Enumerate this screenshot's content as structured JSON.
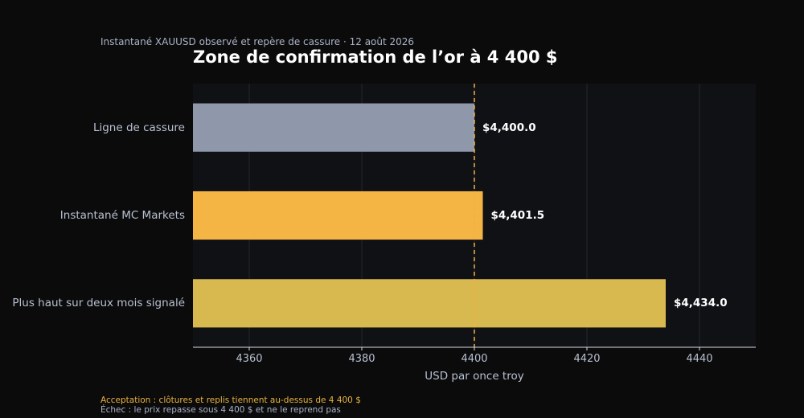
{
  "colors": {
    "background": "#0b0b0c",
    "plot_background": "#101115",
    "grid": "#26282e",
    "axis": "#d7dbe3",
    "reference_line": "#f2b13e",
    "acceptance_text": "#e8b23e",
    "failure_text": "#aab3c5"
  },
  "chart_data": {
    "type": "bar",
    "orientation": "horizontal",
    "subtitle": "Instantané XAUUSD observé et repère de cassure · 12 août 2026",
    "title": "Zone de confirmation de l’or à 4 400 $",
    "xlabel": "USD par once troy",
    "ylabel": "",
    "xlim": [
      4350,
      4450
    ],
    "xticks": [
      4360,
      4380,
      4400,
      4420,
      4440
    ],
    "grid": true,
    "reference_line": 4400,
    "categories": [
      "Ligne de cassure",
      "Instantané MC Markets",
      "Plus haut sur deux mois signalé"
    ],
    "values": [
      4400.0,
      4401.5,
      4434.0
    ],
    "value_labels": [
      "$4,400.0",
      "$4,401.5",
      "$4,434.0"
    ],
    "bar_colors": [
      "#8f98ab",
      "#f4b545",
      "#d8b94f"
    ]
  },
  "notes": {
    "acceptance": "Acceptation : clôtures et replis tiennent au-dessus de 4 400 $",
    "failure": "Échec : le prix repasse sous 4 400 $ et ne le reprend pas"
  }
}
